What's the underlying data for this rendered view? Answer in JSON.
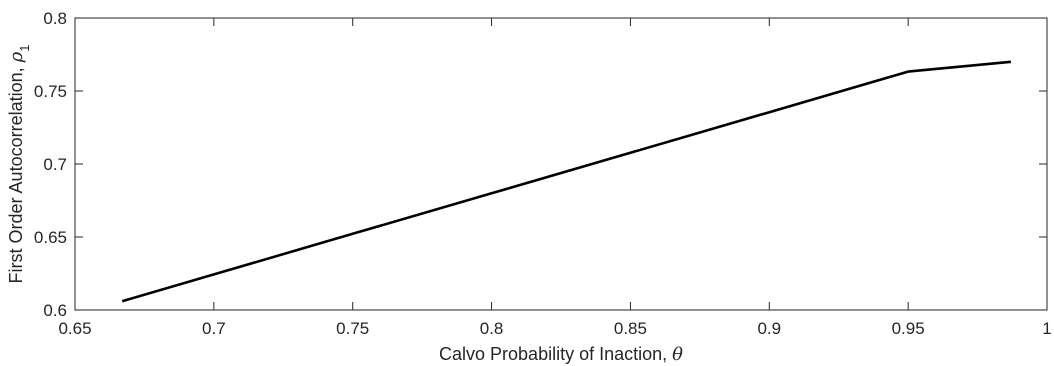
{
  "chart_data": {
    "type": "line",
    "title": "",
    "xlabel": "Calvo Probability of Inaction, ",
    "xlabel_symbol": "θ",
    "ylabel": "First Order Autocorrelation, ",
    "ylabel_symbol": "ρ",
    "ylabel_subscript": "1",
    "xlim": [
      0.65,
      1.0
    ],
    "ylim": [
      0.6,
      0.8
    ],
    "xticks": [
      0.65,
      0.7,
      0.75,
      0.8,
      0.85,
      0.9,
      0.95,
      1.0
    ],
    "xtick_labels": [
      "0.65",
      "0.7",
      "0.75",
      "0.8",
      "0.85",
      "0.9",
      "0.95",
      "1"
    ],
    "yticks": [
      0.6,
      0.65,
      0.7,
      0.75,
      0.8
    ],
    "ytick_labels": [
      "0.6",
      "0.65",
      "0.7",
      "0.75",
      "0.8"
    ],
    "grid": false,
    "legend": "none",
    "line_color": "#000000",
    "axis_color": "#262626",
    "series": [
      {
        "x": [
          0.667,
          0.7,
          0.75,
          0.8,
          0.85,
          0.9,
          0.95,
          0.987
        ],
        "y": [
          0.606,
          0.6244,
          0.6522,
          0.6799,
          0.7077,
          0.7355,
          0.7633,
          0.77
        ]
      }
    ]
  }
}
